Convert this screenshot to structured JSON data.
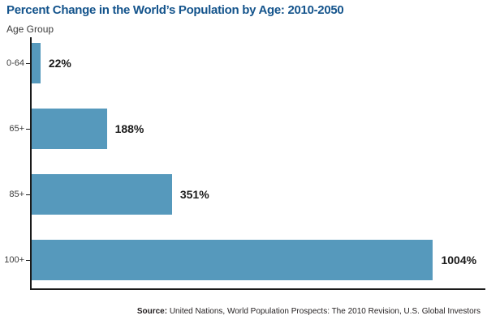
{
  "header": {
    "title": "Percent Change in the World’s Population by Age: 2010-2050",
    "title_color": "#14548C"
  },
  "chart_data": {
    "type": "bar",
    "orientation": "horizontal",
    "title": "Percent Change in the World’s Population by Age: 2010-2050",
    "axis_label": "Age Group",
    "categories": [
      "0-64",
      "65+",
      "85+",
      "100+"
    ],
    "values": [
      22,
      188,
      351,
      1004
    ],
    "value_labels": [
      "22%",
      "188%",
      "351%",
      "1004%"
    ],
    "xlabel": "",
    "ylabel": "Age Group",
    "xlim": [
      0,
      1135
    ],
    "grid": false,
    "legend": false,
    "bar_color": "#5699BC",
    "axis_color": "#1a1a1a"
  },
  "source": {
    "label": "Source:",
    "text": "United Nations, World Population Prospects: The 2010 Revision, U.S. Global Investors"
  }
}
